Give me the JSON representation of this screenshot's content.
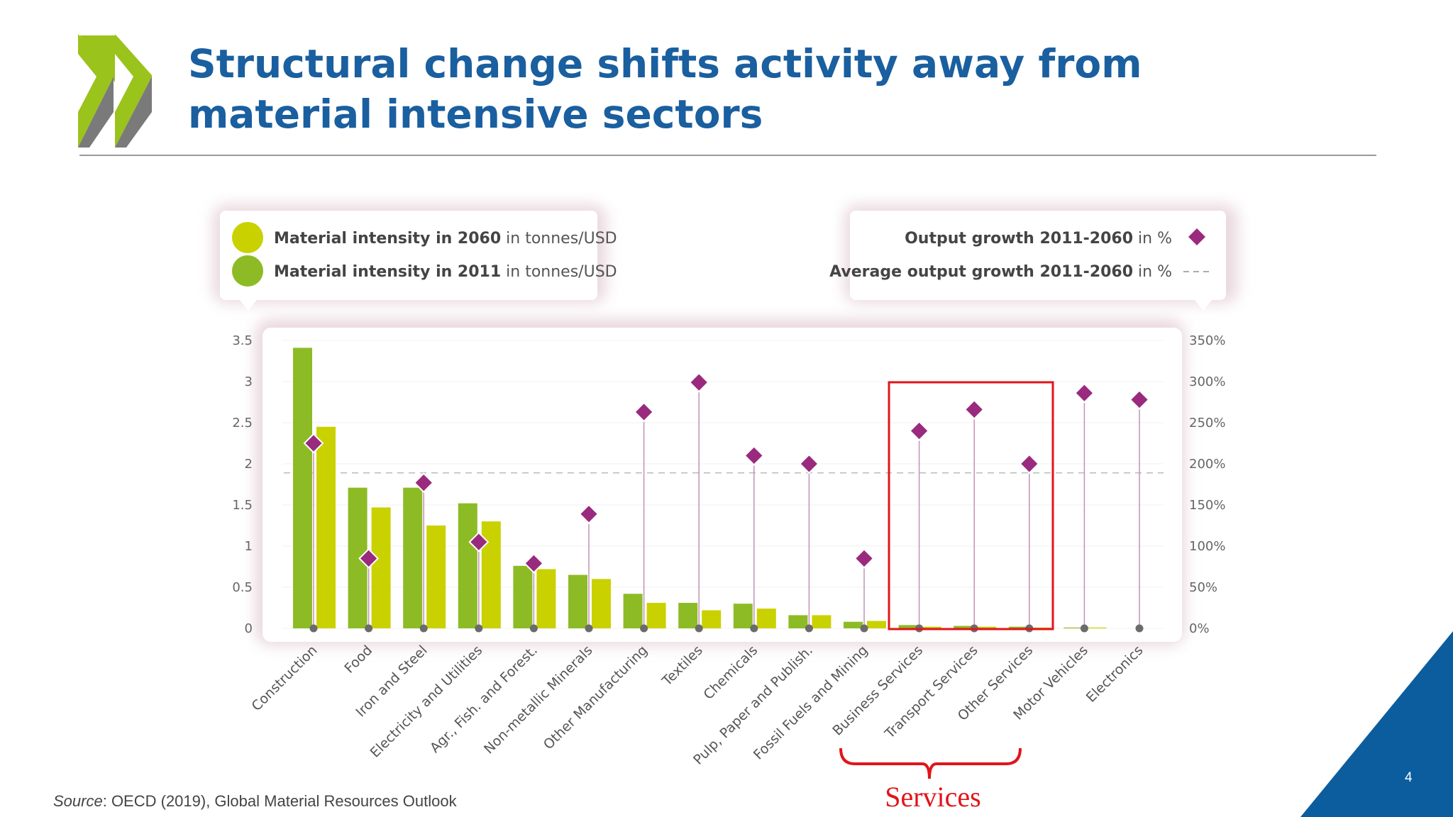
{
  "slide": {
    "title": "Structural change shifts activity away from material intensive sectors",
    "source_label": "Source",
    "source_text": ": OECD (2019), Global Material Resources Outlook",
    "page_number": "4",
    "annotation_label": "Services"
  },
  "legend": {
    "left": {
      "item1_strong": "Material intensity in 2060",
      "item1_unit": " in tonnes/USD",
      "item2_strong": "Material intensity in 2011",
      "item2_unit": " in tonnes/USD"
    },
    "right": {
      "item1_strong": "Output growth 2011-2060",
      "item1_unit": " in %",
      "item2_strong": "Average output growth 2011-2060",
      "item2_unit": " in %"
    }
  },
  "colors": {
    "intensity_2011": "#8dbb25",
    "intensity_2060": "#c9d100",
    "growth_marker": "#9a2a7e",
    "average_line": "#bbbbbb",
    "highlight_box": "#e0151b",
    "title": "#1a5f9f",
    "corner_triangle": "#0b5d9e"
  },
  "chart_data": {
    "type": "bar",
    "categories": [
      "Construction",
      "Food",
      "Iron and Steel",
      "Electricity and Utilities",
      "Agr., Fish. and Forest.",
      "Non-metallic Minerals",
      "Other Manufacturing",
      "Textiles",
      "Chemicals",
      "Pulp, Paper and Publish.",
      "Fossil Fuels and Mining",
      "Business Services",
      "Transport Services",
      "Other Services",
      "Motor Vehicles",
      "Electronics"
    ],
    "series": [
      {
        "name": "Material intensity in 2011",
        "axis": "left",
        "values": [
          3.41,
          1.71,
          1.71,
          1.52,
          0.76,
          0.65,
          0.42,
          0.31,
          0.3,
          0.16,
          0.08,
          0.04,
          0.03,
          0.02,
          0.01,
          0.0
        ]
      },
      {
        "name": "Material intensity in 2060",
        "axis": "left",
        "values": [
          2.45,
          1.47,
          1.25,
          1.3,
          0.72,
          0.6,
          0.31,
          0.22,
          0.24,
          0.16,
          0.09,
          0.02,
          0.02,
          0.01,
          0.01,
          0.0
        ]
      },
      {
        "name": "Output growth 2011-2060",
        "axis": "right",
        "type": "scatter",
        "values": [
          225,
          85,
          177,
          105,
          79,
          139,
          263,
          299,
          210,
          200,
          85,
          240,
          266,
          200,
          286,
          278
        ]
      }
    ],
    "average_output_growth": 189,
    "y_left": {
      "ticks": [
        "0",
        "0.5",
        "1",
        "1.5",
        "2",
        "2.5",
        "3",
        "3.5"
      ],
      "ylim": [
        0,
        3.5
      ]
    },
    "y_right": {
      "ticks": [
        "0%",
        "50%",
        "100%",
        "150%",
        "200%",
        "250%",
        "300%",
        "350%"
      ],
      "ylim": [
        0,
        350
      ]
    },
    "highlight_categories": [
      "Business Services",
      "Transport Services",
      "Other Services"
    ],
    "legend": "top"
  }
}
